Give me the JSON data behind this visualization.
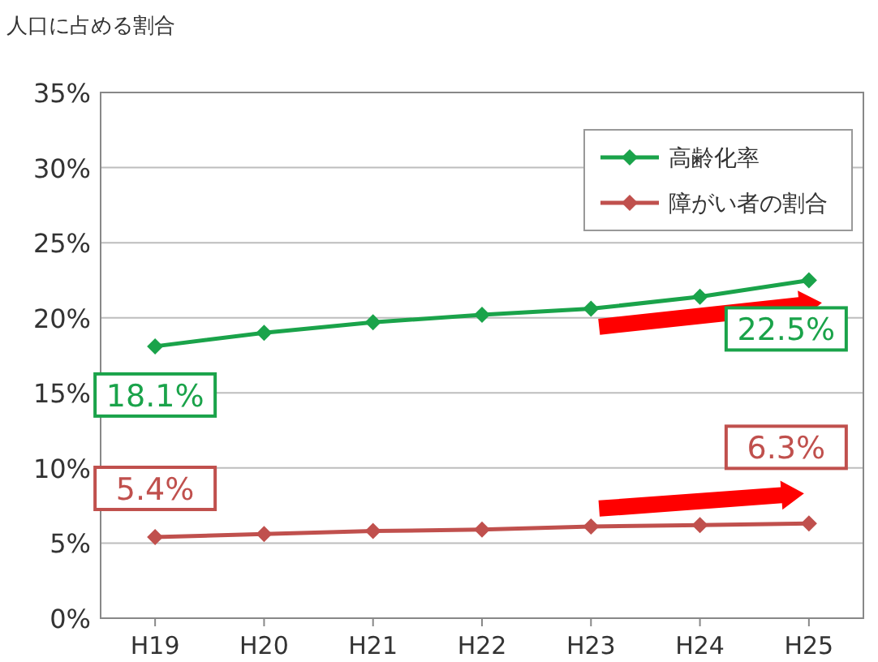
{
  "chart_data": {
    "type": "line",
    "ylabel": "人口に占める割合",
    "categories": [
      "H19",
      "H20",
      "H21",
      "H22",
      "H23",
      "H24",
      "H25"
    ],
    "series": [
      {
        "name": "高齢化率",
        "color": "#1aa34a",
        "values": [
          18.1,
          19.0,
          19.7,
          20.2,
          20.6,
          21.4,
          22.5
        ]
      },
      {
        "name": "障がい者の割合",
        "color": "#c0504d",
        "values": [
          5.4,
          5.6,
          5.8,
          5.9,
          6.1,
          6.2,
          6.3
        ]
      }
    ],
    "ylim": [
      0,
      35
    ],
    "yticks": [
      {
        "value": 0,
        "label": "0%"
      },
      {
        "value": 5,
        "label": "5%"
      },
      {
        "value": 10,
        "label": "10%"
      },
      {
        "value": 15,
        "label": "15%"
      },
      {
        "value": 20,
        "label": "20%"
      },
      {
        "value": 25,
        "label": "25%"
      },
      {
        "value": 30,
        "label": "30%"
      },
      {
        "value": 35,
        "label": "35%"
      }
    ],
    "grid": "y",
    "legend": "top right",
    "marker": "diamond",
    "annotations": [
      {
        "text": "18.1%",
        "x": "H19",
        "y": 18.1
      },
      {
        "text": "22.5%",
        "x": "H25",
        "y": 22.5
      },
      {
        "text": "5.4%",
        "x": "H19",
        "y": 5.4
      },
      {
        "text": "6.3%",
        "x": "H25",
        "y": 6.3
      }
    ]
  }
}
